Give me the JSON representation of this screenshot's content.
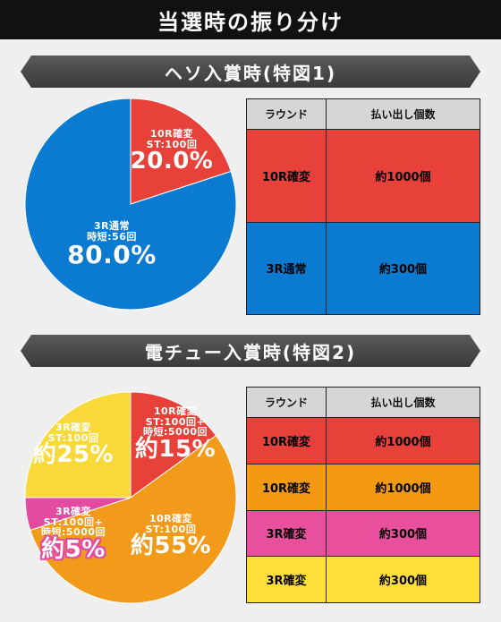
{
  "title": "当選時の振り分け",
  "sections": [
    {
      "header": "ヘソ入賞時(特図1)",
      "table": {
        "headers": [
          "ラウンド",
          "払い出し個数"
        ],
        "rows": [
          {
            "round": "10R確変",
            "payout": "約1000個"
          },
          {
            "round": "3R通常",
            "payout": "約300個"
          }
        ]
      }
    },
    {
      "header": "電チュー入賞時(特図2)",
      "table": {
        "headers": [
          "ラウンド",
          "払い出し個数"
        ],
        "rows": [
          {
            "round": "10R確変",
            "payout": "約1000個"
          },
          {
            "round": "10R確変",
            "payout": "約1000個"
          },
          {
            "round": "3R確変",
            "payout": "約300個"
          },
          {
            "round": "3R確変",
            "payout": "約300個"
          }
        ]
      }
    }
  ],
  "chart_data": [
    {
      "type": "pie",
      "slices": [
        {
          "label_lines": [
            "10R確変",
            "ST:100回"
          ],
          "value": 20.0,
          "value_label": "20.0%",
          "color": "#e8413a"
        },
        {
          "label_lines": [
            "3R通常",
            "時短:56回"
          ],
          "value": 80.0,
          "value_label": "80.0%",
          "color": "#0a7bd0"
        }
      ]
    },
    {
      "type": "pie",
      "slices": [
        {
          "label_lines": [
            "10R確変",
            "ST:100回+",
            "時短:5000回"
          ],
          "value": 15,
          "value_label": "約15%",
          "color": "#e8413a"
        },
        {
          "label_lines": [
            "10R確変",
            "ST:100回"
          ],
          "value": 55,
          "value_label": "約55%",
          "color": "#f29a1a"
        },
        {
          "label_lines": [
            "3R確変",
            "ST:100回+",
            "時短:5000回"
          ],
          "value": 5,
          "value_label": "約5%",
          "color": "#e24b9f"
        },
        {
          "label_lines": [
            "3R確変",
            "ST:100回"
          ],
          "value": 25,
          "value_label": "約25%",
          "color": "#f9d93a"
        }
      ]
    }
  ]
}
